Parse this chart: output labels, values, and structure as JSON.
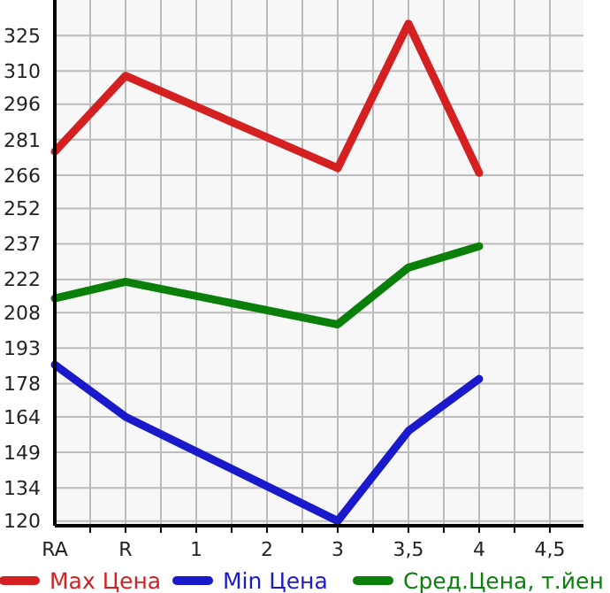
{
  "chart_data": {
    "type": "line",
    "categories": [
      "RA",
      "R",
      "1",
      "2",
      "3",
      "3,5",
      "4",
      "4,5"
    ],
    "series": [
      {
        "name": "Max Цена",
        "color": "#d42020",
        "values": [
          276,
          308,
          null,
          null,
          269,
          330,
          267,
          null
        ]
      },
      {
        "name": "Min Цена",
        "color": "#1a1acc",
        "values": [
          186,
          164,
          null,
          null,
          120,
          158,
          180,
          null
        ]
      },
      {
        "name": "Сред.Цена, т.йен",
        "color": "#0a7f0a",
        "values": [
          214,
          221,
          null,
          null,
          203,
          227,
          236,
          null
        ]
      }
    ],
    "ylim": [
      118,
      340
    ],
    "yticks": [
      120,
      134,
      149,
      164,
      178,
      193,
      208,
      222,
      237,
      252,
      266,
      281,
      296,
      310,
      325
    ],
    "grid": true,
    "legend": "bottom",
    "marker": "none",
    "line_style": "solid"
  }
}
